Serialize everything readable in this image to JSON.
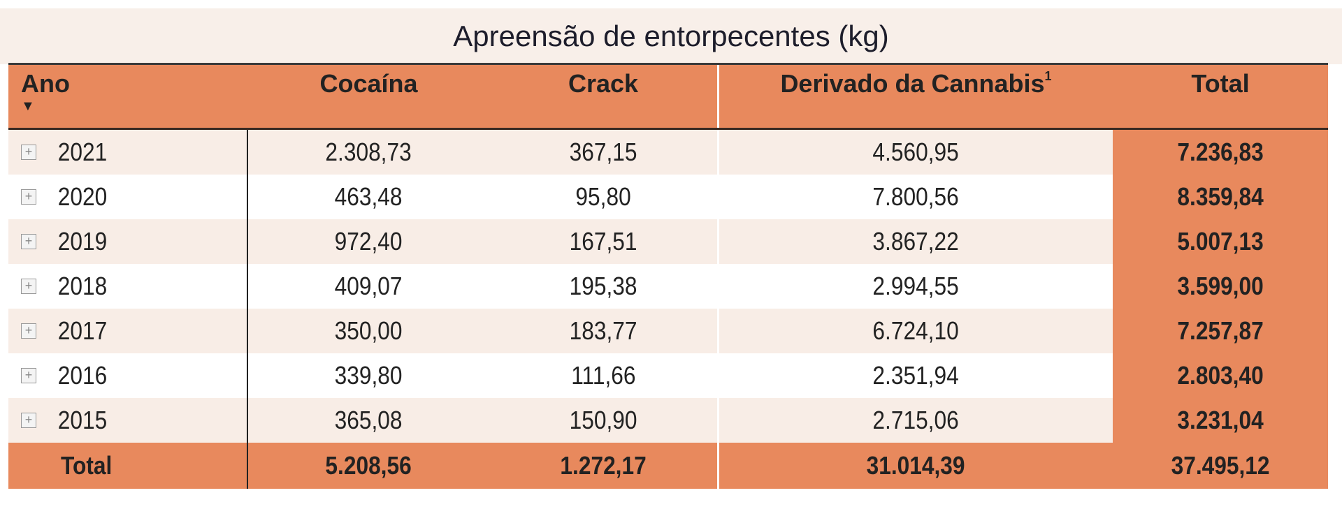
{
  "title": "Apreensão de entorpecentes (kg)",
  "columns": {
    "ano": "Ano",
    "cocaina": "Cocaína",
    "crack": "Crack",
    "cannabis": "Derivado da Cannabis",
    "cannabis_footnote": "1",
    "total": "Total"
  },
  "rows": [
    {
      "ano": "2021",
      "cocaina": "2.308,73",
      "crack": "367,15",
      "cannabis": "4.560,95",
      "total": "7.236,83"
    },
    {
      "ano": "2020",
      "cocaina": "463,48",
      "crack": "95,80",
      "cannabis": "7.800,56",
      "total": "8.359,84"
    },
    {
      "ano": "2019",
      "cocaina": "972,40",
      "crack": "167,51",
      "cannabis": "3.867,22",
      "total": "5.007,13"
    },
    {
      "ano": "2018",
      "cocaina": "409,07",
      "crack": "195,38",
      "cannabis": "2.994,55",
      "total": "3.599,00"
    },
    {
      "ano": "2017",
      "cocaina": "350,00",
      "crack": "183,77",
      "cannabis": "6.724,10",
      "total": "7.257,87"
    },
    {
      "ano": "2016",
      "cocaina": "339,80",
      "crack": "111,66",
      "cannabis": "2.351,94",
      "total": "2.803,40"
    },
    {
      "ano": "2015",
      "cocaina": "365,08",
      "crack": "150,90",
      "cannabis": "2.715,06",
      "total": "3.231,04"
    }
  ],
  "totals": {
    "label": "Total",
    "cocaina": "5.208,56",
    "crack": "1.272,17",
    "cannabis": "31.014,39",
    "total": "37.495,12"
  },
  "colors": {
    "header": "#e8895d",
    "band": "#f8ede6"
  }
}
